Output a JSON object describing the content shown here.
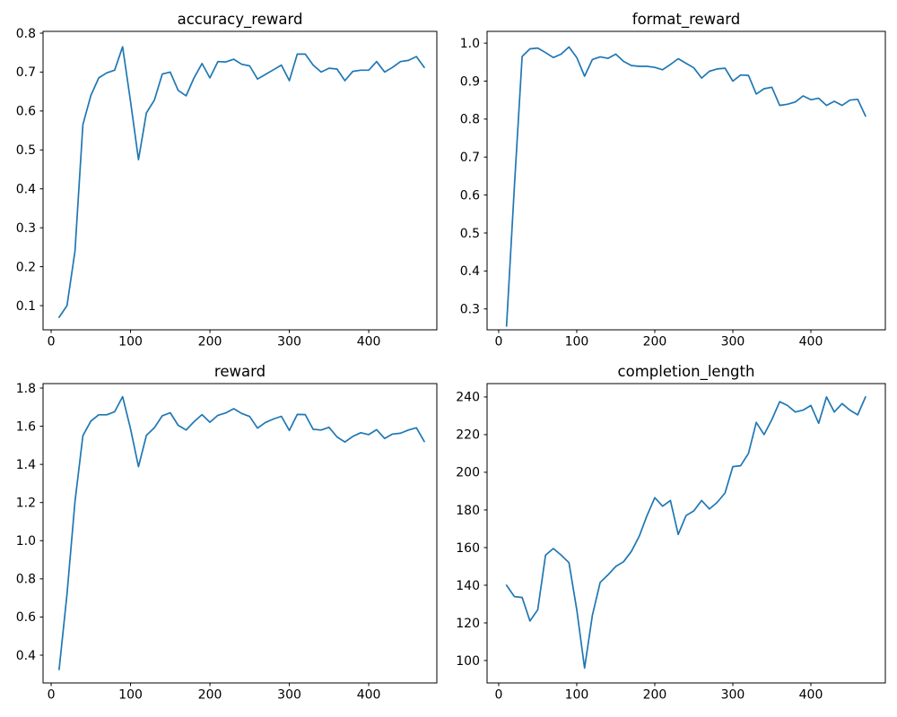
{
  "figure": {
    "background": "#ffffff",
    "line_color": "#1f77b4",
    "axis_color": "#000000",
    "text_color": "#000000",
    "titles": [
      "accuracy_reward",
      "format_reward",
      "reward",
      "completion_length"
    ]
  },
  "chart_data": [
    {
      "type": "line",
      "title": "accuracy_reward",
      "xlabel": "",
      "ylabel": "",
      "grid": false,
      "legend": null,
      "xlim": [
        -10.2,
        485.8
      ],
      "ylim": [
        0.0378,
        0.8046
      ],
      "xticks": [
        0,
        100,
        200,
        300,
        400
      ],
      "xtick_labels": [
        "0",
        "100",
        "200",
        "300",
        "400"
      ],
      "yticks": [
        0.1,
        0.2,
        0.3,
        0.4,
        0.5,
        0.6,
        0.7,
        0.8
      ],
      "ytick_labels": [
        "0.1",
        "0.2",
        "0.3",
        "0.4",
        "0.5",
        "0.6",
        "0.7",
        "0.8"
      ],
      "x": [
        10,
        20,
        30,
        40,
        50,
        60,
        70,
        80,
        90,
        100,
        110,
        120,
        130,
        140,
        150,
        160,
        170,
        180,
        190,
        200,
        210,
        220,
        230,
        240,
        250,
        260,
        270,
        280,
        290,
        300,
        310,
        320,
        330,
        340,
        350,
        360,
        370,
        380,
        390,
        400,
        410,
        420,
        430,
        440,
        450,
        460,
        470
      ],
      "values": [
        0.07,
        0.1,
        0.24,
        0.565,
        0.64,
        0.685,
        0.698,
        0.705,
        0.765,
        0.625,
        0.475,
        0.595,
        0.628,
        0.695,
        0.7,
        0.653,
        0.639,
        0.685,
        0.722,
        0.685,
        0.727,
        0.726,
        0.733,
        0.72,
        0.716,
        0.682,
        0.694,
        0.706,
        0.718,
        0.678,
        0.746,
        0.746,
        0.718,
        0.7,
        0.71,
        0.708,
        0.678,
        0.702,
        0.705,
        0.705,
        0.727,
        0.7,
        0.712,
        0.727,
        0.73,
        0.74,
        0.712
      ]
    },
    {
      "type": "line",
      "title": "format_reward",
      "xlabel": "",
      "ylabel": "",
      "grid": false,
      "legend": null,
      "xlim": [
        -14.9,
        495.4
      ],
      "ylim": [
        0.245,
        1.031
      ],
      "xticks": [
        0,
        100,
        200,
        300,
        400
      ],
      "xtick_labels": [
        "0",
        "100",
        "200",
        "300",
        "400"
      ],
      "yticks": [
        0.3,
        0.4,
        0.5,
        0.6,
        0.7,
        0.8,
        0.9,
        1.0
      ],
      "ytick_labels": [
        "0.3",
        "0.4",
        "0.5",
        "0.6",
        "0.7",
        "0.8",
        "0.9",
        "1.0"
      ],
      "x": [
        10,
        20,
        30,
        40,
        50,
        60,
        70,
        80,
        90,
        100,
        110,
        120,
        130,
        140,
        150,
        160,
        170,
        180,
        190,
        200,
        210,
        220,
        230,
        240,
        250,
        260,
        270,
        280,
        290,
        300,
        310,
        320,
        330,
        340,
        350,
        360,
        370,
        380,
        390,
        400,
        410,
        420,
        430,
        440,
        450,
        460,
        470
      ],
      "values": [
        0.255,
        0.62,
        0.965,
        0.985,
        0.987,
        0.975,
        0.962,
        0.971,
        0.99,
        0.962,
        0.913,
        0.957,
        0.964,
        0.96,
        0.971,
        0.952,
        0.941,
        0.939,
        0.939,
        0.936,
        0.93,
        0.944,
        0.959,
        0.947,
        0.935,
        0.908,
        0.926,
        0.932,
        0.934,
        0.9,
        0.916,
        0.915,
        0.866,
        0.88,
        0.884,
        0.836,
        0.839,
        0.845,
        0.861,
        0.851,
        0.855,
        0.836,
        0.847,
        0.836,
        0.85,
        0.852,
        0.808
      ]
    },
    {
      "type": "line",
      "title": "reward",
      "xlabel": "",
      "ylabel": "",
      "grid": false,
      "legend": null,
      "xlim": [
        -10.2,
        485.8
      ],
      "ylim": [
        0.2543,
        1.8235
      ],
      "xticks": [
        0,
        100,
        200,
        300,
        400
      ],
      "xtick_labels": [
        "0",
        "100",
        "200",
        "300",
        "400"
      ],
      "yticks": [
        0.4,
        0.6,
        0.8,
        1.0,
        1.2,
        1.4,
        1.6,
        1.8
      ],
      "ytick_labels": [
        "0.4",
        "0.6",
        "0.8",
        "1.0",
        "1.2",
        "1.4",
        "1.6",
        "1.8"
      ],
      "x": [
        10,
        20,
        30,
        40,
        50,
        60,
        70,
        80,
        90,
        100,
        110,
        120,
        130,
        140,
        150,
        160,
        170,
        180,
        190,
        200,
        210,
        220,
        230,
        240,
        250,
        260,
        270,
        280,
        290,
        300,
        310,
        320,
        330,
        340,
        350,
        360,
        370,
        380,
        390,
        400,
        410,
        420,
        430,
        440,
        450,
        460,
        470
      ],
      "values": [
        0.325,
        0.72,
        1.205,
        1.55,
        1.627,
        1.66,
        1.66,
        1.676,
        1.755,
        1.587,
        1.388,
        1.552,
        1.592,
        1.655,
        1.671,
        1.605,
        1.58,
        1.624,
        1.661,
        1.621,
        1.657,
        1.67,
        1.692,
        1.667,
        1.651,
        1.59,
        1.62,
        1.638,
        1.652,
        1.578,
        1.662,
        1.661,
        1.584,
        1.58,
        1.594,
        1.544,
        1.517,
        1.547,
        1.566,
        1.556,
        1.582,
        1.536,
        1.559,
        1.563,
        1.58,
        1.592,
        1.52
      ]
    },
    {
      "type": "line",
      "title": "completion_length",
      "xlabel": "",
      "ylabel": "",
      "grid": false,
      "legend": null,
      "xlim": [
        -14.9,
        495.4
      ],
      "ylim": [
        88.1,
        247.1
      ],
      "xticks": [
        0,
        100,
        200,
        300,
        400
      ],
      "xtick_labels": [
        "0",
        "100",
        "200",
        "300",
        "400"
      ],
      "yticks": [
        100,
        120,
        140,
        160,
        180,
        200,
        220,
        240
      ],
      "ytick_labels": [
        "100",
        "120",
        "140",
        "160",
        "180",
        "200",
        "220",
        "240"
      ],
      "x": [
        10,
        20,
        30,
        40,
        50,
        60,
        70,
        80,
        90,
        100,
        110,
        120,
        130,
        140,
        150,
        160,
        170,
        180,
        190,
        200,
        210,
        220,
        230,
        240,
        250,
        260,
        270,
        280,
        290,
        300,
        310,
        320,
        330,
        340,
        350,
        360,
        370,
        380,
        390,
        400,
        410,
        420,
        430,
        440,
        450,
        460,
        470
      ],
      "values": [
        140,
        134,
        133.5,
        121,
        127,
        156,
        159.5,
        156,
        152,
        127,
        96,
        124,
        141.5,
        145.5,
        150,
        152.5,
        158,
        166,
        177,
        186.5,
        182,
        185,
        167,
        177,
        179.5,
        185,
        180.5,
        184,
        189,
        203,
        203.5,
        210,
        226.5,
        220,
        228,
        237.5,
        235.5,
        232,
        233,
        235.5,
        226,
        240,
        232,
        236.5,
        233,
        230.5,
        240
      ]
    }
  ]
}
